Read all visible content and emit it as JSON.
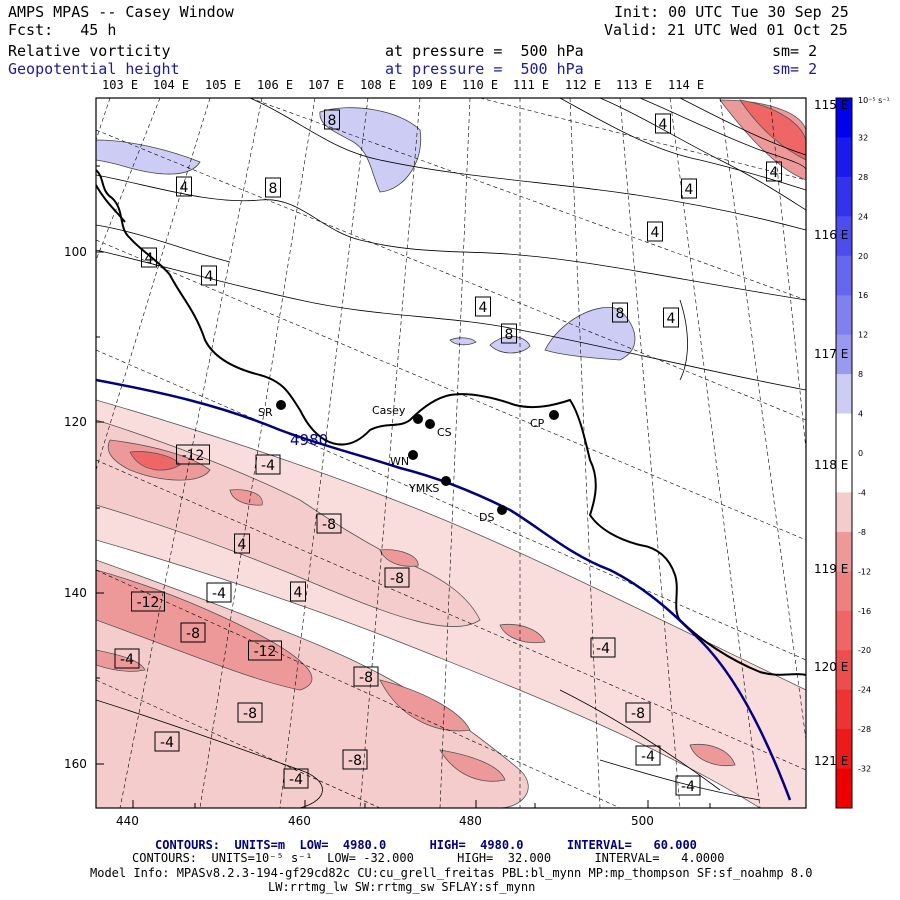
{
  "header": {
    "title": "AMPS MPAS -- Casey Window",
    "init": "Init: 00 UTC Tue 30 Sep 25",
    "fcst": "Fcst:   45 h",
    "valid": "Valid: 21 UTC Wed 01 Oct 25",
    "field1_name": "Relative vorticity",
    "field1_level": "at pressure =  500 hPa",
    "field1_sm": "sm= 2",
    "field2_name": "Geopotential height",
    "field2_level": "at pressure =  500 hPa",
    "field2_sm": "sm= 2"
  },
  "axes": {
    "top_longitudes": [
      "103 E",
      "104 E",
      "105 E",
      "106 E",
      "107 E",
      "108 E",
      "109 E",
      "110 E",
      "111 E",
      "112 E",
      "113 E",
      "114 E"
    ],
    "right_longitudes": [
      "115 E",
      "116 E",
      "117 E",
      "118 E",
      "119 E",
      "120 E",
      "121 E"
    ],
    "x_ticks": [
      "440",
      "460",
      "480",
      "500"
    ],
    "y_ticks": [
      "100",
      "120",
      "140",
      "160"
    ]
  },
  "colorbar": {
    "unit": "10⁻⁵ s⁻¹",
    "tick_labels": [
      "32",
      "28",
      "24",
      "20",
      "16",
      "12",
      "8",
      "4",
      "0",
      "-4",
      "-8",
      "-12",
      "-16",
      "-20",
      "-24",
      "-28",
      "-32"
    ],
    "colors": [
      "#0000ee",
      "#1a1aee",
      "#3333ee",
      "#4d4dee",
      "#6666ee",
      "#8080ee",
      "#9999ee",
      "#ccccf5",
      "#ffffff",
      "#ffffff",
      "#f5cccc",
      "#ee9999",
      "#ee8080",
      "#ee6666",
      "#ee4d4d",
      "#ee3333",
      "#ee1a1a",
      "#ee0000"
    ]
  },
  "stations": [
    {
      "label": "SR"
    },
    {
      "label": "Casey"
    },
    {
      "label": "CS"
    },
    {
      "label": "CP"
    },
    {
      "label": "WN"
    },
    {
      "label": "YMKS"
    },
    {
      "label": "DS"
    }
  ],
  "height_contour": {
    "label": "4980",
    "color": "#000080"
  },
  "contour_labels": [
    "8",
    "4",
    "4",
    "8",
    "4",
    "4",
    "4",
    "4",
    "4",
    "4",
    "8",
    "8",
    "4",
    "-12",
    "-4",
    "-8",
    "4",
    "-8",
    "4",
    "-4",
    "-12",
    "-8",
    "-12",
    "-4",
    "-8",
    "-4",
    "-8",
    "-4",
    "-8",
    "-8",
    "-4",
    "-4",
    "-4"
  ],
  "footer": {
    "line1_contours": "CONTOURS:",
    "line1_units": "UNITS=m",
    "line1_low": "LOW=  4980.0",
    "line1_high": "HIGH=  4980.0",
    "line1_interval": "INTERVAL=   60.000",
    "line2_contours": "CONTOURS:",
    "line2_units": "UNITS=10⁻⁵ s⁻¹",
    "line2_low": "LOW= -32.000",
    "line2_high": "HIGH=  32.000",
    "line2_interval": "INTERVAL=   4.0000",
    "line3": "Model Info: MPASv8.2.3-194-gf29cd82c CU:cu_grell_freitas PBL:bl_mynn MP:mp_thompson SF:sf_noahmp 8.0",
    "line4": "LW:rrtmg_lw SW:rrtmg_sw SFLAY:sf_mynn"
  }
}
